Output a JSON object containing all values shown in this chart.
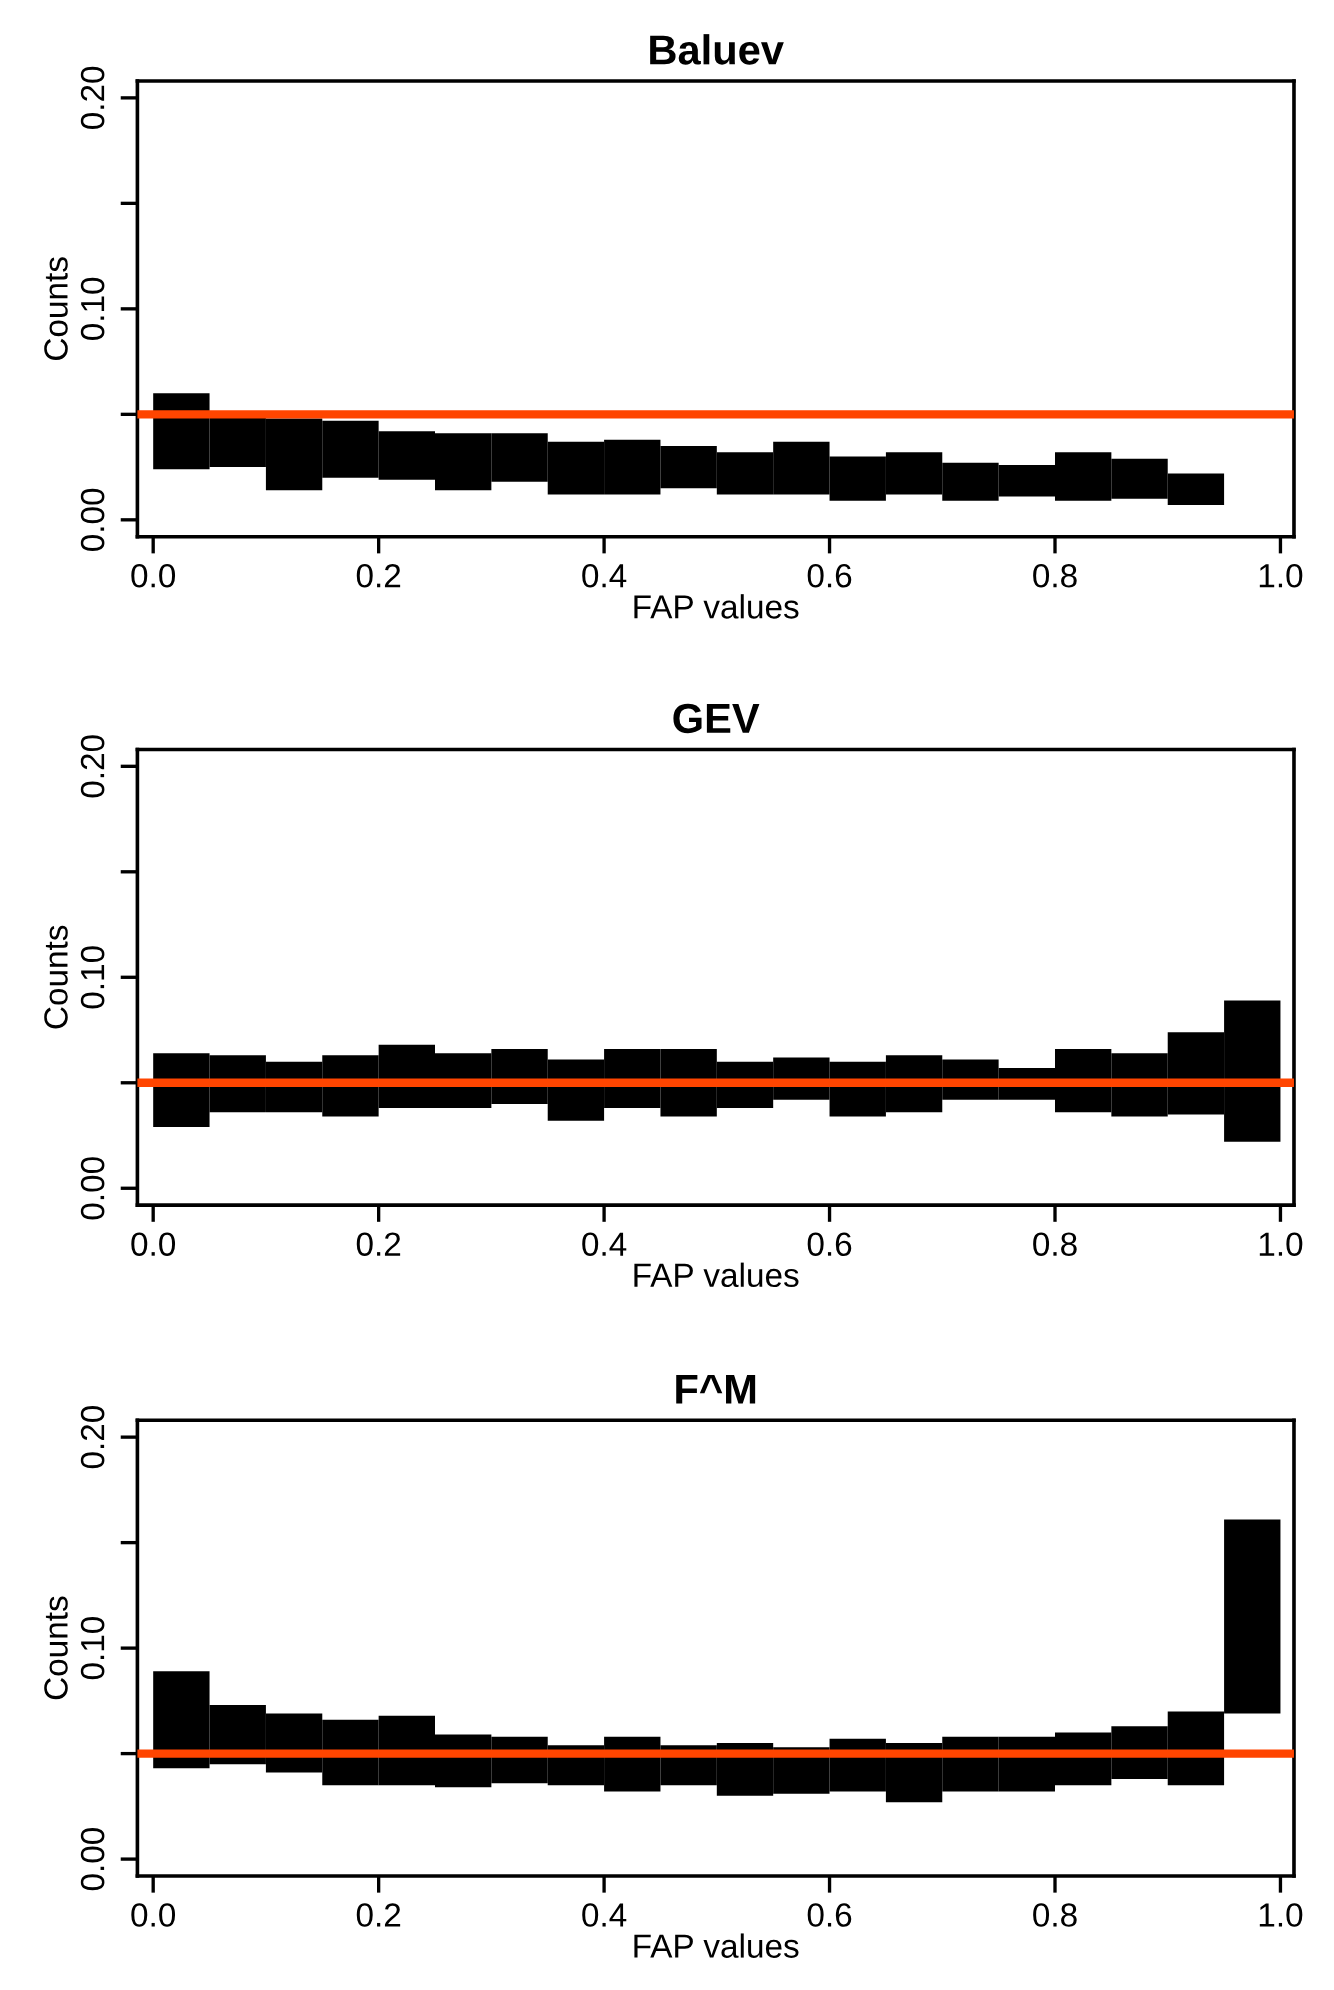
{
  "chart_data": [
    {
      "type": "bar",
      "title": "Baluev",
      "xlabel": "FAP values",
      "ylabel": "Counts",
      "x": [
        0.025,
        0.075,
        0.125,
        0.175,
        0.225,
        0.275,
        0.325,
        0.375,
        0.425,
        0.475,
        0.525,
        0.575,
        0.625,
        0.675,
        0.725,
        0.775,
        0.825,
        0.875,
        0.925
      ],
      "series": [
        {
          "color": "#000000",
          "base": [
            0.024,
            0.025,
            0.014,
            0.02,
            0.019,
            0.014,
            0.018,
            0.012,
            0.012,
            0.015,
            0.012,
            0.012,
            0.009,
            0.012,
            0.009,
            0.011,
            0.009,
            0.01,
            0.007
          ],
          "values": [
            0.036,
            0.024,
            0.034,
            0.027,
            0.023,
            0.027,
            0.023,
            0.025,
            0.026,
            0.02,
            0.02,
            0.025,
            0.021,
            0.02,
            0.018,
            0.015,
            0.023,
            0.019,
            0.015
          ]
        }
      ],
      "xlim": [
        -0.014,
        1.012
      ],
      "xticks": [
        {
          "value": 0,
          "label": "0.0"
        },
        {
          "value": 0.2,
          "label": "0.2"
        },
        {
          "value": 0.4,
          "label": "0.4"
        },
        {
          "value": 0.6,
          "label": "0.6"
        },
        {
          "value": 0.8,
          "label": "0.8"
        },
        {
          "value": 1,
          "label": "1.0"
        }
      ],
      "ylim": [
        -0.008,
        0.208
      ],
      "yticks": [
        {
          "value": 0,
          "label": "0.00"
        },
        {
          "value": 0.05,
          "label": null
        },
        {
          "value": 0.1,
          "label": "0.10"
        },
        {
          "value": 0.15,
          "label": null
        },
        {
          "value": 0.2,
          "label": "0.20"
        }
      ],
      "ref_lines": [
        {
          "axis": "y",
          "value": 0.05,
          "color": "#ff4500"
        }
      ],
      "grid": false,
      "legend": false
    },
    {
      "type": "bar",
      "title": "GEV",
      "xlabel": "FAP values",
      "ylabel": "Counts",
      "x": [
        0.025,
        0.075,
        0.125,
        0.175,
        0.225,
        0.275,
        0.325,
        0.375,
        0.425,
        0.475,
        0.525,
        0.575,
        0.625,
        0.675,
        0.725,
        0.775,
        0.825,
        0.875,
        0.925,
        0.975
      ],
      "series": [
        {
          "color": "#000000",
          "base": [
            0.029,
            0.036,
            0.036,
            0.034,
            0.038,
            0.038,
            0.04,
            0.032,
            0.038,
            0.034,
            0.038,
            0.042,
            0.034,
            0.036,
            0.042,
            0.042,
            0.036,
            0.034,
            0.035,
            0.022
          ],
          "values": [
            0.035,
            0.027,
            0.024,
            0.029,
            0.03,
            0.026,
            0.026,
            0.029,
            0.028,
            0.032,
            0.022,
            0.02,
            0.026,
            0.027,
            0.019,
            0.015,
            0.03,
            0.03,
            0.039,
            0.067
          ]
        }
      ],
      "xlim": [
        -0.014,
        1.012
      ],
      "xticks": [
        {
          "value": 0,
          "label": "0.0"
        },
        {
          "value": 0.2,
          "label": "0.2"
        },
        {
          "value": 0.4,
          "label": "0.4"
        },
        {
          "value": 0.6,
          "label": "0.6"
        },
        {
          "value": 0.8,
          "label": "0.8"
        },
        {
          "value": 1,
          "label": "1.0"
        }
      ],
      "ylim": [
        -0.008,
        0.208
      ],
      "yticks": [
        {
          "value": 0,
          "label": "0.00"
        },
        {
          "value": 0.05,
          "label": null
        },
        {
          "value": 0.1,
          "label": "0.10"
        },
        {
          "value": 0.15,
          "label": null
        },
        {
          "value": 0.2,
          "label": "0.20"
        }
      ],
      "ref_lines": [
        {
          "axis": "y",
          "value": 0.05,
          "color": "#ff4500"
        }
      ],
      "grid": false,
      "legend": false
    },
    {
      "type": "bar",
      "title": "F^M",
      "xlabel": "FAP values",
      "ylabel": "Counts",
      "x": [
        0.025,
        0.075,
        0.125,
        0.175,
        0.225,
        0.275,
        0.325,
        0.375,
        0.425,
        0.475,
        0.525,
        0.575,
        0.625,
        0.675,
        0.725,
        0.775,
        0.825,
        0.875,
        0.925,
        0.975
      ],
      "series": [
        {
          "color": "#000000",
          "base": [
            0.043,
            0.045,
            0.041,
            0.035,
            0.035,
            0.034,
            0.036,
            0.035,
            0.032,
            0.035,
            0.03,
            0.031,
            0.032,
            0.027,
            0.032,
            0.032,
            0.035,
            0.038,
            0.035,
            0.069
          ],
          "values": [
            0.046,
            0.028,
            0.028,
            0.031,
            0.033,
            0.025,
            0.022,
            0.019,
            0.026,
            0.019,
            0.025,
            0.022,
            0.025,
            0.028,
            0.026,
            0.026,
            0.025,
            0.025,
            0.035,
            0.092
          ]
        }
      ],
      "xlim": [
        -0.014,
        1.012
      ],
      "xticks": [
        {
          "value": 0,
          "label": "0.0"
        },
        {
          "value": 0.2,
          "label": "0.2"
        },
        {
          "value": 0.4,
          "label": "0.4"
        },
        {
          "value": 0.6,
          "label": "0.6"
        },
        {
          "value": 0.8,
          "label": "0.8"
        },
        {
          "value": 1,
          "label": "1.0"
        }
      ],
      "ylim": [
        -0.008,
        0.208
      ],
      "yticks": [
        {
          "value": 0,
          "label": "0.00"
        },
        {
          "value": 0.05,
          "label": null
        },
        {
          "value": 0.1,
          "label": "0.10"
        },
        {
          "value": 0.15,
          "label": null
        },
        {
          "value": 0.2,
          "label": "0.20"
        }
      ],
      "ref_lines": [
        {
          "axis": "y",
          "value": 0.05,
          "color": "#ff4500"
        }
      ],
      "grid": false,
      "legend": false
    }
  ]
}
